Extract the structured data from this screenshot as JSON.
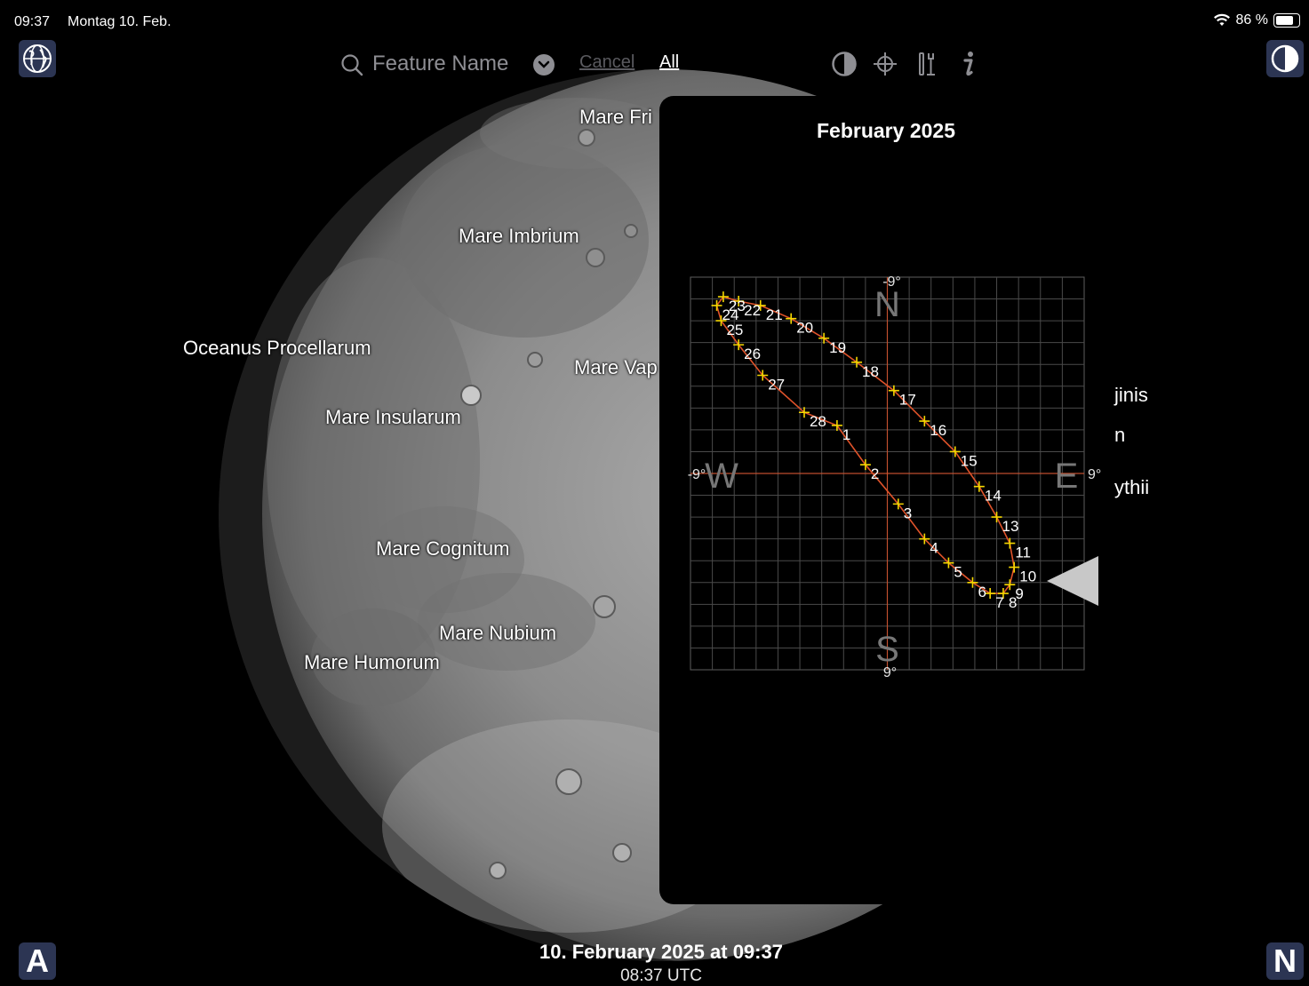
{
  "status_bar": {
    "time": "09:37",
    "date": "Montag 10. Feb.",
    "battery_percent": "86 %",
    "battery_level": 0.86,
    "wifi_icon": "wifi-icon"
  },
  "toolbar": {
    "search_placeholder": "Feature Name",
    "cancel_label": "Cancel",
    "all_label": "All",
    "icons": [
      "contrast-icon",
      "crosshair-icon",
      "tools-icon",
      "info-icon"
    ]
  },
  "corner_buttons": {
    "globe_icon": "globe-icon",
    "contrast_icon": "contrast-icon",
    "bottom_left_label": "A",
    "bottom_right_label": "N"
  },
  "moon_labels": {
    "mare_frigoris": "Mare Fri",
    "mare_imbrium": "Mare Imbrium",
    "oceanus_procellarum": "Oceanus Procellarum",
    "mare_vaporum": "Mare Vap",
    "mare_insularum": "Mare Insularum",
    "mare_cognitum": "Mare Cognitum",
    "mare_nubium": "Mare Nubium",
    "mare_humorum": "Mare Humorum",
    "right_1": "jinis",
    "right_2": "n",
    "right_3": "ythii"
  },
  "panel": {
    "title": "February 2025"
  },
  "chart_data": {
    "type": "scatter",
    "title": "February 2025",
    "xlim": [
      -9,
      9
    ],
    "ylim": [
      -9,
      9
    ],
    "grid": true,
    "axis_labels": {
      "north": "N",
      "south": "S",
      "east": "E",
      "west": "W",
      "north_value": "-9°",
      "south_value": "9°",
      "east_value": "9°",
      "west_value": "-9°"
    },
    "points": [
      {
        "day": "1",
        "x": -2.3,
        "y": -2.2
      },
      {
        "day": "2",
        "x": -1.0,
        "y": -0.4
      },
      {
        "day": "3",
        "x": 0.5,
        "y": 1.4
      },
      {
        "day": "4",
        "x": 1.7,
        "y": 3.0
      },
      {
        "day": "5",
        "x": 2.8,
        "y": 4.1
      },
      {
        "day": "6",
        "x": 3.9,
        "y": 5.0
      },
      {
        "day": "7",
        "x": 4.7,
        "y": 5.5
      },
      {
        "day": "8",
        "x": 5.3,
        "y": 5.5
      },
      {
        "day": "9",
        "x": 5.6,
        "y": 5.1
      },
      {
        "day": "10",
        "x": 5.8,
        "y": 4.3
      },
      {
        "day": "11",
        "x": 5.6,
        "y": 3.2
      },
      {
        "day": "13",
        "x": 5.0,
        "y": 2.0
      },
      {
        "day": "14",
        "x": 4.2,
        "y": 0.6
      },
      {
        "day": "15",
        "x": 3.1,
        "y": -1.0
      },
      {
        "day": "16",
        "x": 1.7,
        "y": -2.4
      },
      {
        "day": "17",
        "x": 0.3,
        "y": -3.8
      },
      {
        "day": "18",
        "x": -1.4,
        "y": -5.1
      },
      {
        "day": "19",
        "x": -2.9,
        "y": -6.2
      },
      {
        "day": "20",
        "x": -4.4,
        "y": -7.1
      },
      {
        "day": "21",
        "x": -5.8,
        "y": -7.7
      },
      {
        "day": "22",
        "x": -6.8,
        "y": -7.9
      },
      {
        "day": "23",
        "x": -7.5,
        "y": -8.1
      },
      {
        "day": "24",
        "x": -7.8,
        "y": -7.7
      },
      {
        "day": "25",
        "x": -7.6,
        "y": -7.0
      },
      {
        "day": "26",
        "x": -6.8,
        "y": -5.9
      },
      {
        "day": "27",
        "x": -5.7,
        "y": -4.5
      },
      {
        "day": "28",
        "x": -3.8,
        "y": -2.8
      }
    ],
    "line_color": "#e0532a",
    "marker_color": "#f5d800"
  },
  "bottom": {
    "date_time": "10. February 2025 at 09:37",
    "utc": "08:37 UTC"
  }
}
